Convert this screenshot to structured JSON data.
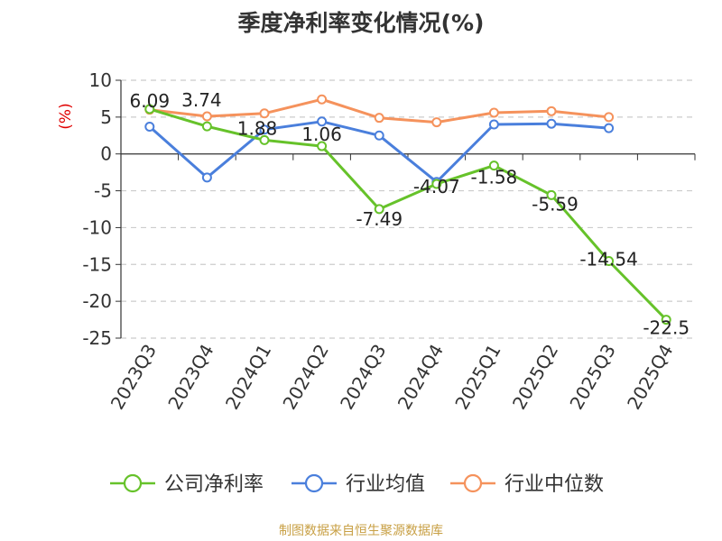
{
  "chart_data": {
    "type": "line",
    "title": "季度净利率变化情况(%)",
    "ylabel": "(%)",
    "xlabel": "",
    "categories": [
      "2023Q3",
      "2023Q4",
      "2024Q1",
      "2024Q2",
      "2024Q3",
      "2024Q4",
      "2025Q1",
      "2025Q2",
      "2025Q3",
      "2025Q4"
    ],
    "ylim": [
      -25,
      10
    ],
    "yticks": [
      10,
      5,
      0,
      -5,
      -10,
      -15,
      -20,
      -25
    ],
    "grid": true,
    "legend_position": "bottom",
    "series": [
      {
        "name": "公司净利率",
        "color": "#66c22a",
        "values": [
          6.09,
          3.74,
          1.88,
          1.06,
          -7.49,
          -4.07,
          -1.58,
          -5.59,
          -14.54,
          -22.5
        ],
        "labels": [
          "6.09",
          "3.74",
          "1.88",
          "1.06",
          "-7.49",
          "-4.07",
          "-1.58",
          "-5.59",
          "-14.54",
          "-22.5"
        ]
      },
      {
        "name": "行业均值",
        "color": "#4a7fdc",
        "values": [
          3.7,
          -3.2,
          3.3,
          4.4,
          2.5,
          -3.8,
          4.0,
          4.1,
          3.5,
          null
        ]
      },
      {
        "name": "行业中位数",
        "color": "#f5925c",
        "values": [
          6.0,
          5.1,
          5.5,
          7.4,
          4.9,
          4.3,
          5.6,
          5.8,
          5.0,
          null
        ]
      }
    ]
  },
  "source_note": "制图数据来自恒生聚源数据库",
  "colors": {
    "axis": "#333333",
    "grid": "#cccccc",
    "ylabel": "#e00000",
    "source": "#c8a045"
  }
}
